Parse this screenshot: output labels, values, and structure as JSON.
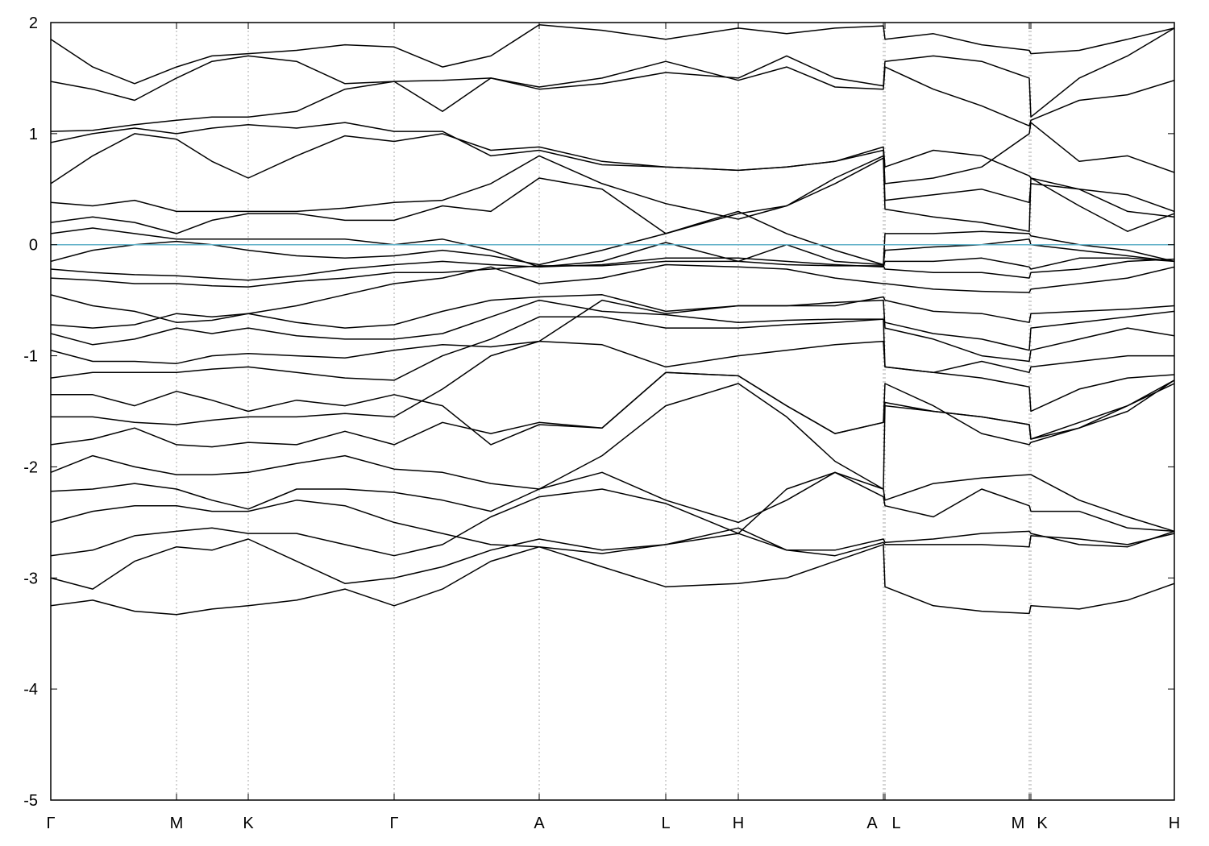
{
  "chart_data": {
    "type": "line",
    "x": [
      0,
      52,
      104,
      156,
      200,
      245,
      305,
      365,
      426,
      486,
      546,
      606,
      684,
      763,
      853,
      913,
      973,
      1033,
      1035,
      1095,
      1155,
      1214,
      1216,
      1276,
      1336,
      1394
    ],
    "xlim": [
      0,
      1394
    ],
    "ylim": [
      -5,
      2
    ],
    "xticks": [
      {
        "value": 0,
        "label": "Γ"
      },
      {
        "value": 156,
        "label": "M"
      },
      {
        "value": 245,
        "label": "K"
      },
      {
        "value": 426,
        "label": "Γ"
      },
      {
        "value": 606,
        "label": "A"
      },
      {
        "value": 763,
        "label": "L"
      },
      {
        "value": 853,
        "label": "H"
      },
      {
        "value": 1033,
        "label": "A"
      },
      {
        "value": 1035,
        "label": "L"
      },
      {
        "value": 1214,
        "label": "M"
      },
      {
        "value": 1216,
        "label": "K"
      },
      {
        "value": 1394,
        "label": "H"
      }
    ],
    "yticks": [
      -5,
      -4,
      -3,
      -2,
      -1,
      0,
      1,
      2
    ],
    "grid": true,
    "series": [
      {
        "color": "#000000",
        "values": [
          -3.25,
          -3.2,
          -3.3,
          -3.33,
          -3.28,
          -3.25,
          -3.2,
          -3.1,
          -3.25,
          -3.1,
          -2.85,
          -2.72,
          -2.9,
          -3.08,
          -3.05,
          -3.0,
          -2.85,
          -2.7,
          -3.08,
          -3.25,
          -3.3,
          -3.32,
          -3.25,
          -3.28,
          -3.2,
          -3.05
        ]
      },
      {
        "color": "#000000",
        "values": [
          -3.0,
          -3.1,
          -2.85,
          -2.72,
          -2.75,
          -2.65,
          -2.85,
          -3.05,
          -3.0,
          -2.9,
          -2.75,
          -2.65,
          -2.75,
          -2.7,
          -2.6,
          -2.75,
          -2.8,
          -2.68,
          -2.7,
          -2.7,
          -2.7,
          -2.72,
          -2.62,
          -2.65,
          -2.7,
          -2.6
        ]
      },
      {
        "color": "#000000",
        "values": [
          -2.8,
          -2.75,
          -2.62,
          -2.58,
          -2.55,
          -2.6,
          -2.6,
          -2.7,
          -2.8,
          -2.7,
          -2.45,
          -2.27,
          -2.2,
          -2.33,
          -2.6,
          -2.2,
          -2.05,
          -2.27,
          -2.35,
          -2.45,
          -2.2,
          -2.35,
          -2.4,
          -2.4,
          -2.55,
          -2.58
        ]
      },
      {
        "color": "#000000",
        "values": [
          -2.5,
          -2.4,
          -2.35,
          -2.35,
          -2.4,
          -2.4,
          -2.3,
          -2.35,
          -2.5,
          -2.6,
          -2.7,
          -2.72,
          -2.78,
          -2.7,
          -2.55,
          -2.75,
          -2.75,
          -2.65,
          -2.68,
          -2.65,
          -2.6,
          -2.58,
          -2.6,
          -2.7,
          -2.72,
          -2.58
        ]
      },
      {
        "color": "#000000",
        "values": [
          -2.22,
          -2.2,
          -2.15,
          -2.2,
          -2.3,
          -2.38,
          -2.2,
          -2.2,
          -2.23,
          -2.3,
          -2.4,
          -2.2,
          -2.05,
          -2.3,
          -2.5,
          -2.3,
          -2.05,
          -2.2,
          -2.3,
          -2.15,
          -2.1,
          -2.07,
          -2.07,
          -2.3,
          -2.45,
          -2.58
        ]
      },
      {
        "color": "#000000",
        "values": [
          -2.05,
          -1.9,
          -2.0,
          -2.07,
          -2.07,
          -2.05,
          -1.97,
          -1.9,
          -2.02,
          -2.05,
          -2.15,
          -2.2,
          -1.9,
          -1.45,
          -1.25,
          -1.55,
          -1.95,
          -2.2,
          -1.45,
          -1.5,
          -1.55,
          -1.62,
          -1.75,
          -1.6,
          -1.45,
          -1.25
        ]
      },
      {
        "color": "#000000",
        "values": [
          -1.8,
          -1.75,
          -1.65,
          -1.8,
          -1.82,
          -1.78,
          -1.8,
          -1.68,
          -1.8,
          -1.6,
          -1.7,
          -1.6,
          -1.65,
          -1.15,
          -1.18,
          -1.45,
          -1.7,
          -1.6,
          -1.25,
          -1.45,
          -1.7,
          -1.8,
          -1.78,
          -1.65,
          -1.45,
          -1.22
        ]
      },
      {
        "color": "#000000",
        "values": [
          -1.55,
          -1.55,
          -1.6,
          -1.62,
          -1.58,
          -1.55,
          -1.55,
          -1.52,
          -1.55,
          -1.3,
          -1.0,
          -0.87,
          -0.9,
          -1.1,
          -1.0,
          -0.95,
          -0.9,
          -0.87,
          -1.1,
          -1.15,
          -1.2,
          -1.28,
          -1.5,
          -1.3,
          -1.2,
          -1.17
        ]
      },
      {
        "color": "#000000",
        "values": [
          -1.35,
          -1.35,
          -1.45,
          -1.32,
          -1.4,
          -1.5,
          -1.4,
          -1.45,
          -1.35,
          -1.45,
          -1.8,
          -1.62,
          -1.65,
          -1.15,
          -1.18,
          -1.45,
          -1.7,
          -1.6,
          -1.42,
          -1.5,
          -1.55,
          -1.62,
          -1.75,
          -1.65,
          -1.5,
          -1.22
        ]
      },
      {
        "color": "#000000",
        "values": [
          -1.2,
          -1.15,
          -1.15,
          -1.15,
          -1.12,
          -1.1,
          -1.15,
          -1.2,
          -1.22,
          -1.0,
          -0.85,
          -0.65,
          -0.65,
          -0.75,
          -0.75,
          -0.72,
          -0.7,
          -0.67,
          -1.1,
          -1.15,
          -1.05,
          -1.15,
          -1.1,
          -1.05,
          -1.0,
          -1.0
        ]
      },
      {
        "color": "#000000",
        "values": [
          -0.95,
          -1.05,
          -1.05,
          -1.07,
          -1.0,
          -0.98,
          -1.0,
          -1.02,
          -0.95,
          -0.9,
          -0.92,
          -0.87,
          -0.5,
          -0.62,
          -0.55,
          -0.55,
          -0.52,
          -0.5,
          -0.75,
          -0.85,
          -1.0,
          -1.05,
          -0.95,
          -0.85,
          -0.75,
          -0.82
        ]
      },
      {
        "color": "#000000",
        "values": [
          -0.8,
          -0.9,
          -0.85,
          -0.75,
          -0.8,
          -0.75,
          -0.82,
          -0.85,
          -0.85,
          -0.8,
          -0.65,
          -0.5,
          -0.6,
          -0.63,
          -0.7,
          -0.68,
          -0.67,
          -0.67,
          -0.7,
          -0.8,
          -0.85,
          -0.95,
          -0.75,
          -0.7,
          -0.65,
          -0.6
        ]
      },
      {
        "color": "#000000",
        "values": [
          -0.72,
          -0.75,
          -0.72,
          -0.62,
          -0.65,
          -0.62,
          -0.7,
          -0.75,
          -0.72,
          -0.6,
          -0.5,
          -0.47,
          -0.45,
          -0.6,
          -0.55,
          -0.55,
          -0.55,
          -0.47,
          -0.5,
          -0.6,
          -0.62,
          -0.7,
          -0.62,
          -0.6,
          -0.58,
          -0.55
        ]
      },
      {
        "color": "#000000",
        "values": [
          -0.45,
          -0.55,
          -0.6,
          -0.7,
          -0.68,
          -0.62,
          -0.55,
          -0.45,
          -0.35,
          -0.3,
          -0.2,
          -0.35,
          -0.3,
          -0.18,
          -0.2,
          -0.22,
          -0.3,
          -0.35,
          -0.35,
          -0.4,
          -0.42,
          -0.43,
          -0.4,
          -0.35,
          -0.3,
          -0.2
        ]
      },
      {
        "color": "#000000",
        "values": [
          -0.3,
          -0.32,
          -0.35,
          -0.35,
          -0.37,
          -0.38,
          -0.33,
          -0.3,
          -0.25,
          -0.25,
          -0.22,
          -0.19,
          -0.19,
          -0.15,
          -0.15,
          -0.18,
          -0.19,
          -0.19,
          -0.22,
          -0.25,
          -0.25,
          -0.3,
          -0.25,
          -0.22,
          -0.15,
          -0.13
        ]
      },
      {
        "color": "#000000",
        "values": [
          -0.22,
          -0.25,
          -0.27,
          -0.28,
          -0.3,
          -0.32,
          -0.28,
          -0.22,
          -0.18,
          -0.15,
          -0.18,
          -0.2,
          -0.18,
          -0.12,
          -0.12,
          -0.15,
          -0.18,
          -0.2,
          -0.15,
          -0.15,
          -0.12,
          -0.2,
          -0.22,
          -0.12,
          -0.12,
          -0.15
        ]
      },
      {
        "color": "#000000",
        "values": [
          -0.15,
          -0.05,
          0.0,
          0.03,
          0.0,
          -0.05,
          -0.1,
          -0.12,
          -0.1,
          -0.05,
          -0.1,
          -0.18,
          -0.05,
          0.1,
          0.3,
          0.1,
          -0.05,
          -0.18,
          -0.05,
          -0.02,
          0.0,
          0.05,
          0.0,
          -0.05,
          -0.1,
          -0.15
        ]
      },
      {
        "color": "#000000",
        "values": [
          0.1,
          0.15,
          0.1,
          0.05,
          0.05,
          0.05,
          0.05,
          0.05,
          0.0,
          0.05,
          -0.05,
          -0.2,
          -0.15,
          0.02,
          -0.15,
          0.0,
          -0.15,
          -0.18,
          0.1,
          0.1,
          0.12,
          0.1,
          0.08,
          0.0,
          -0.05,
          -0.15
        ]
      },
      {
        "color": "#000000",
        "values": [
          0.2,
          0.25,
          0.2,
          0.1,
          0.22,
          0.28,
          0.28,
          0.22,
          0.22,
          0.35,
          0.3,
          0.6,
          0.5,
          0.1,
          0.28,
          0.35,
          0.55,
          0.78,
          0.32,
          0.25,
          0.2,
          0.12,
          0.6,
          0.35,
          0.12,
          0.28
        ]
      },
      {
        "color": "#000000",
        "values": [
          0.38,
          0.35,
          0.4,
          0.3,
          0.3,
          0.3,
          0.3,
          0.33,
          0.38,
          0.4,
          0.55,
          0.8,
          0.55,
          0.37,
          0.23,
          0.35,
          0.6,
          0.8,
          0.4,
          0.45,
          0.5,
          0.38,
          0.55,
          0.5,
          0.45,
          0.3
        ]
      },
      {
        "color": "#000000",
        "values": [
          0.55,
          0.8,
          1.0,
          0.95,
          0.75,
          0.6,
          0.8,
          0.98,
          0.93,
          1.0,
          0.85,
          0.88,
          0.75,
          0.7,
          0.67,
          0.7,
          0.75,
          0.88,
          0.7,
          0.85,
          0.8,
          0.62,
          0.6,
          0.5,
          0.3,
          0.25
        ]
      },
      {
        "color": "#000000",
        "values": [
          0.92,
          1.0,
          1.05,
          1.0,
          1.05,
          1.08,
          1.05,
          1.1,
          1.02,
          1.02,
          0.8,
          0.85,
          0.72,
          0.7,
          0.67,
          0.7,
          0.75,
          0.85,
          0.55,
          0.6,
          0.7,
          1.0,
          1.1,
          0.75,
          0.8,
          0.65
        ]
      },
      {
        "color": "#000000",
        "values": [
          1.02,
          1.03,
          1.08,
          1.12,
          1.15,
          1.15,
          1.2,
          1.4,
          1.47,
          1.48,
          1.5,
          1.42,
          1.5,
          1.65,
          1.48,
          1.6,
          1.42,
          1.4,
          1.6,
          1.4,
          1.25,
          1.07,
          1.12,
          1.3,
          1.35,
          1.48
        ]
      },
      {
        "color": "#000000",
        "values": [
          1.47,
          1.4,
          1.3,
          1.5,
          1.65,
          1.7,
          1.65,
          1.45,
          1.47,
          1.2,
          1.5,
          1.4,
          1.45,
          1.55,
          1.5,
          1.7,
          1.5,
          1.43,
          1.65,
          1.7,
          1.65,
          1.5,
          1.15,
          1.5,
          1.7,
          1.95
        ]
      },
      {
        "color": "#000000",
        "values": [
          1.85,
          1.6,
          1.45,
          1.6,
          1.7,
          1.72,
          1.75,
          1.8,
          1.78,
          1.6,
          1.7,
          1.98,
          1.93,
          1.85,
          1.95,
          1.9,
          1.95,
          1.97,
          1.85,
          1.9,
          1.8,
          1.75,
          1.72,
          1.75,
          1.85,
          1.95
        ]
      },
      {
        "color": "#5fb0c8",
        "values": [
          0,
          0,
          0,
          0,
          0,
          0,
          0,
          0,
          0,
          0,
          0,
          0,
          0,
          0,
          0,
          0,
          0,
          0,
          0,
          0,
          0,
          0,
          0,
          0,
          0,
          0
        ]
      }
    ]
  }
}
